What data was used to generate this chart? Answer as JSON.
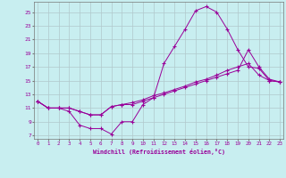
{
  "xlabel": "Windchill (Refroidissement éolien,°C)",
  "x_ticks": [
    0,
    1,
    2,
    3,
    4,
    5,
    6,
    7,
    8,
    9,
    10,
    11,
    12,
    13,
    14,
    15,
    16,
    17,
    18,
    19,
    20,
    21,
    22,
    23
  ],
  "y_ticks": [
    7,
    9,
    11,
    13,
    15,
    17,
    19,
    21,
    23,
    25
  ],
  "background_color": "#c8eef0",
  "line_color": "#990099",
  "grid_color": "#b0c8cc",
  "line1_x": [
    0,
    1,
    2,
    3,
    4,
    5,
    6,
    7,
    8,
    9,
    10,
    11,
    12,
    13,
    14,
    15,
    16,
    17,
    18,
    19,
    20,
    21,
    22,
    23
  ],
  "line1_y": [
    12.0,
    11.0,
    11.0,
    10.5,
    8.5,
    8.0,
    8.0,
    7.2,
    9.0,
    9.0,
    11.5,
    12.5,
    17.5,
    20.0,
    22.5,
    25.2,
    25.8,
    25.0,
    22.5,
    19.5,
    17.0,
    16.8,
    15.0,
    14.8
  ],
  "line2_x": [
    0,
    1,
    2,
    3,
    4,
    5,
    6,
    7,
    8,
    9,
    10,
    11,
    12,
    13,
    14,
    15,
    16,
    17,
    18,
    19,
    20,
    21,
    22,
    23
  ],
  "line2_y": [
    12.0,
    11.0,
    11.0,
    11.0,
    10.5,
    10.0,
    10.0,
    11.2,
    11.5,
    11.5,
    12.0,
    12.5,
    13.0,
    13.5,
    14.0,
    14.5,
    15.0,
    15.5,
    16.0,
    16.5,
    19.5,
    17.0,
    15.2,
    14.8
  ],
  "line3_x": [
    0,
    1,
    2,
    3,
    4,
    5,
    6,
    7,
    8,
    9,
    10,
    11,
    12,
    13,
    14,
    15,
    16,
    17,
    18,
    19,
    20,
    21,
    22,
    23
  ],
  "line3_y": [
    12.0,
    11.0,
    11.0,
    11.0,
    10.5,
    10.0,
    10.0,
    11.2,
    11.5,
    11.8,
    12.2,
    12.8,
    13.2,
    13.7,
    14.2,
    14.8,
    15.2,
    15.8,
    16.5,
    17.0,
    17.5,
    15.8,
    15.0,
    14.8
  ]
}
